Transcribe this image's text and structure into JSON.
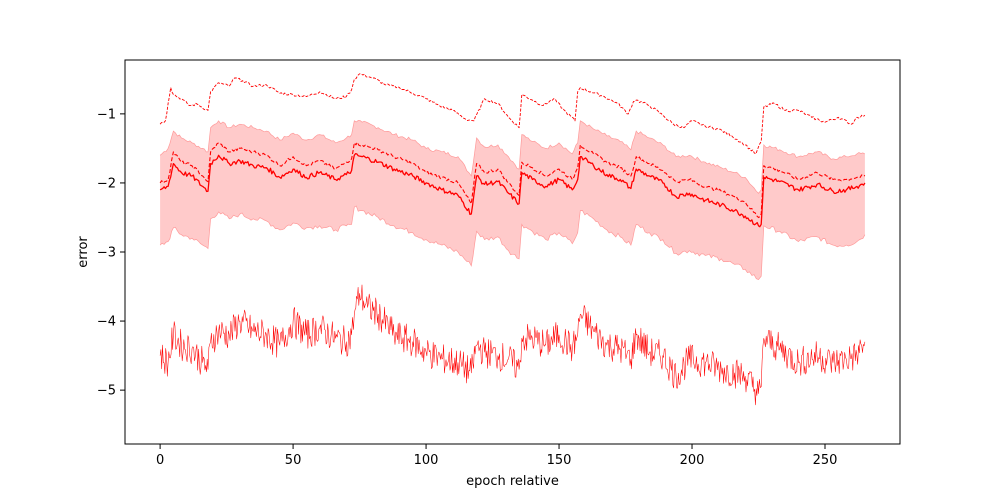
{
  "chart_data": {
    "type": "line",
    "title": "",
    "xlabel": "epoch relative",
    "ylabel": "error",
    "xlim": [
      -13.2,
      278.2
    ],
    "ylim": [
      -5.78,
      -0.22
    ],
    "xticks": [
      0,
      50,
      100,
      150,
      200,
      250
    ],
    "yticks": [
      -5,
      -4,
      -3,
      -2,
      -1
    ],
    "grid": false,
    "legend": "none",
    "colors": {
      "line": "#ff0000",
      "band": "#ffb3b3",
      "band_edge": "#ff9999"
    },
    "series": [
      {
        "role": "upper-dashed",
        "style": "dashed",
        "x": [
          0,
          1,
          2,
          3,
          4,
          5,
          8,
          11,
          14,
          18,
          19,
          22,
          26,
          28,
          31,
          35,
          40,
          45,
          50,
          55,
          60,
          66,
          70,
          72,
          73,
          75,
          80,
          85,
          90,
          95,
          100,
          105,
          110,
          115,
          118,
          122,
          127,
          131,
          135,
          136,
          140,
          144,
          148,
          152,
          156,
          157,
          158,
          162,
          167,
          172,
          176,
          178,
          179,
          184,
          189,
          193,
          197,
          200,
          205,
          210,
          215,
          220,
          224,
          226,
          227,
          231,
          235,
          240,
          245,
          250,
          255,
          260,
          262,
          265
        ],
        "y": [
          -1.15,
          -1.12,
          -1.1,
          -0.85,
          -0.62,
          -0.72,
          -0.78,
          -0.88,
          -0.86,
          -0.95,
          -0.68,
          -0.55,
          -0.6,
          -0.48,
          -0.52,
          -0.6,
          -0.58,
          -0.7,
          -0.72,
          -0.75,
          -0.68,
          -0.78,
          -0.75,
          -0.65,
          -0.5,
          -0.42,
          -0.48,
          -0.58,
          -0.62,
          -0.7,
          -0.78,
          -0.88,
          -0.95,
          -1.08,
          -1.1,
          -0.78,
          -0.85,
          -1.05,
          -1.2,
          -0.72,
          -0.8,
          -0.88,
          -0.78,
          -0.95,
          -1.1,
          -0.68,
          -0.62,
          -0.68,
          -0.75,
          -0.85,
          -1.0,
          -0.82,
          -0.8,
          -0.88,
          -1.02,
          -1.15,
          -1.2,
          -1.1,
          -1.18,
          -1.22,
          -1.32,
          -1.45,
          -1.58,
          -1.4,
          -0.9,
          -0.85,
          -0.95,
          -0.95,
          -1.05,
          -1.12,
          -1.05,
          -1.15,
          -1.05,
          -1.02
        ]
      },
      {
        "role": "mean-dashed",
        "style": "dashed",
        "x": [
          0,
          3,
          5,
          8,
          12,
          16,
          18,
          19,
          22,
          26,
          30,
          35,
          40,
          45,
          50,
          55,
          60,
          66,
          70,
          72,
          73,
          76,
          82,
          88,
          95,
          100,
          106,
          112,
          117,
          119,
          122,
          127,
          131,
          135,
          136,
          140,
          145,
          150,
          155,
          157,
          158,
          163,
          168,
          173,
          177,
          179,
          184,
          189,
          194,
          199,
          205,
          211,
          216,
          220,
          225,
          226,
          227,
          233,
          240,
          247,
          253,
          258,
          262,
          265
        ],
        "y": [
          -2.0,
          -1.95,
          -1.55,
          -1.7,
          -1.75,
          -1.9,
          -1.98,
          -1.55,
          -1.42,
          -1.55,
          -1.5,
          -1.55,
          -1.6,
          -1.75,
          -1.62,
          -1.75,
          -1.68,
          -1.8,
          -1.7,
          -1.65,
          -1.42,
          -1.45,
          -1.52,
          -1.62,
          -1.72,
          -1.85,
          -1.92,
          -2.0,
          -2.3,
          -1.72,
          -1.85,
          -1.8,
          -2.0,
          -2.18,
          -1.7,
          -1.78,
          -1.9,
          -1.8,
          -1.95,
          -1.78,
          -1.45,
          -1.58,
          -1.7,
          -1.78,
          -1.9,
          -1.62,
          -1.72,
          -1.82,
          -1.98,
          -1.95,
          -2.05,
          -2.12,
          -2.2,
          -2.28,
          -2.5,
          -2.45,
          -1.75,
          -1.82,
          -1.95,
          -1.85,
          -1.95,
          -1.95,
          -1.92,
          -1.9
        ]
      },
      {
        "role": "mean-solid",
        "style": "solid",
        "x": [
          0,
          3,
          5,
          8,
          12,
          16,
          18,
          19,
          22,
          26,
          30,
          35,
          40,
          45,
          50,
          55,
          60,
          66,
          70,
          72,
          73,
          76,
          82,
          88,
          95,
          100,
          106,
          112,
          117,
          119,
          122,
          127,
          131,
          135,
          136,
          140,
          145,
          150,
          155,
          157,
          158,
          163,
          168,
          173,
          177,
          179,
          184,
          189,
          194,
          199,
          205,
          211,
          216,
          220,
          225,
          226,
          227,
          233,
          240,
          247,
          253,
          258,
          262,
          265
        ],
        "y": [
          -2.1,
          -2.05,
          -1.72,
          -1.85,
          -1.9,
          -2.05,
          -2.12,
          -1.72,
          -1.6,
          -1.72,
          -1.68,
          -1.75,
          -1.78,
          -1.92,
          -1.8,
          -1.92,
          -1.85,
          -1.95,
          -1.88,
          -1.82,
          -1.6,
          -1.62,
          -1.7,
          -1.8,
          -1.9,
          -2.0,
          -2.1,
          -2.18,
          -2.45,
          -1.9,
          -2.02,
          -1.98,
          -2.15,
          -2.3,
          -1.85,
          -1.95,
          -2.05,
          -1.95,
          -2.1,
          -1.95,
          -1.62,
          -1.75,
          -1.88,
          -1.95,
          -2.08,
          -1.8,
          -1.9,
          -2.0,
          -2.2,
          -2.15,
          -2.25,
          -2.32,
          -2.4,
          -2.48,
          -2.62,
          -2.6,
          -1.92,
          -1.98,
          -2.1,
          -2.02,
          -2.12,
          -2.1,
          -2.05,
          -2.0
        ]
      },
      {
        "role": "band-upper",
        "style": "band",
        "x": [
          0,
          3,
          5,
          8,
          12,
          16,
          18,
          19,
          22,
          26,
          30,
          35,
          40,
          45,
          50,
          55,
          60,
          66,
          70,
          72,
          73,
          76,
          82,
          88,
          95,
          100,
          106,
          112,
          117,
          119,
          122,
          127,
          131,
          135,
          136,
          140,
          145,
          150,
          155,
          157,
          158,
          163,
          168,
          173,
          177,
          179,
          184,
          189,
          194,
          199,
          205,
          211,
          216,
          220,
          225,
          226,
          227,
          233,
          240,
          247,
          253,
          258,
          262,
          265
        ],
        "y": [
          -1.6,
          -1.5,
          -1.25,
          -1.35,
          -1.42,
          -1.5,
          -1.55,
          -1.2,
          -1.1,
          -1.2,
          -1.15,
          -1.2,
          -1.25,
          -1.38,
          -1.28,
          -1.38,
          -1.3,
          -1.42,
          -1.35,
          -1.3,
          -1.1,
          -1.12,
          -1.2,
          -1.3,
          -1.38,
          -1.5,
          -1.55,
          -1.62,
          -1.9,
          -1.35,
          -1.48,
          -1.45,
          -1.62,
          -1.8,
          -1.3,
          -1.4,
          -1.5,
          -1.42,
          -1.58,
          -1.42,
          -1.1,
          -1.22,
          -1.32,
          -1.4,
          -1.52,
          -1.25,
          -1.35,
          -1.45,
          -1.62,
          -1.6,
          -1.7,
          -1.78,
          -1.85,
          -1.92,
          -2.15,
          -2.1,
          -1.45,
          -1.52,
          -1.62,
          -1.55,
          -1.65,
          -1.62,
          -1.58,
          -1.58
        ]
      },
      {
        "role": "band-lower",
        "style": "band",
        "x": [
          0,
          3,
          5,
          8,
          12,
          16,
          18,
          19,
          22,
          26,
          30,
          35,
          40,
          45,
          50,
          55,
          60,
          66,
          70,
          72,
          73,
          76,
          82,
          88,
          95,
          100,
          106,
          112,
          117,
          119,
          122,
          127,
          131,
          135,
          136,
          140,
          145,
          150,
          155,
          157,
          158,
          163,
          168,
          173,
          177,
          179,
          184,
          189,
          194,
          199,
          205,
          211,
          216,
          220,
          225,
          226,
          227,
          233,
          240,
          247,
          253,
          258,
          262,
          265
        ],
        "y": [
          -2.9,
          -2.85,
          -2.65,
          -2.75,
          -2.8,
          -2.9,
          -2.95,
          -2.52,
          -2.42,
          -2.52,
          -2.45,
          -2.52,
          -2.55,
          -2.68,
          -2.58,
          -2.65,
          -2.62,
          -2.68,
          -2.62,
          -2.6,
          -2.35,
          -2.4,
          -2.5,
          -2.62,
          -2.72,
          -2.82,
          -2.9,
          -3.0,
          -3.2,
          -2.7,
          -2.82,
          -2.78,
          -2.98,
          -3.1,
          -2.6,
          -2.7,
          -2.82,
          -2.72,
          -2.88,
          -2.72,
          -2.4,
          -2.52,
          -2.68,
          -2.78,
          -2.9,
          -2.6,
          -2.72,
          -2.82,
          -3.02,
          -2.98,
          -3.05,
          -3.1,
          -3.18,
          -3.25,
          -3.4,
          -3.35,
          -2.62,
          -2.7,
          -2.85,
          -2.78,
          -2.9,
          -2.9,
          -2.85,
          -2.75
        ]
      },
      {
        "role": "lower-noisy",
        "style": "solid",
        "x": [
          0,
          3,
          5,
          8,
          12,
          16,
          18,
          19,
          22,
          26,
          30,
          35,
          40,
          45,
          50,
          55,
          60,
          66,
          70,
          72,
          73,
          75,
          78,
          82,
          88,
          95,
          100,
          106,
          112,
          117,
          119,
          122,
          127,
          131,
          135,
          136,
          140,
          145,
          150,
          155,
          157,
          158,
          163,
          168,
          173,
          177,
          179,
          184,
          189,
          194,
          199,
          205,
          211,
          216,
          220,
          225,
          226,
          227,
          233,
          240,
          247,
          253,
          258,
          262,
          265
        ],
        "y": [
          -4.5,
          -4.6,
          -4.2,
          -4.35,
          -4.4,
          -4.6,
          -4.7,
          -4.3,
          -4.15,
          -4.2,
          -4.0,
          -4.15,
          -4.2,
          -4.35,
          -4.0,
          -4.2,
          -4.1,
          -4.25,
          -4.3,
          -4.2,
          -3.9,
          -3.6,
          -3.8,
          -3.9,
          -4.2,
          -4.3,
          -4.45,
          -4.55,
          -4.6,
          -4.75,
          -4.35,
          -4.45,
          -4.5,
          -4.55,
          -4.7,
          -4.25,
          -4.25,
          -4.35,
          -4.2,
          -4.4,
          -4.2,
          -3.9,
          -4.15,
          -4.35,
          -4.4,
          -4.55,
          -4.2,
          -4.45,
          -4.5,
          -4.8,
          -4.55,
          -4.6,
          -4.7,
          -4.75,
          -4.8,
          -5.05,
          -4.95,
          -4.25,
          -4.4,
          -4.6,
          -4.5,
          -4.6,
          -4.55,
          -4.5,
          -4.3
        ]
      }
    ]
  }
}
